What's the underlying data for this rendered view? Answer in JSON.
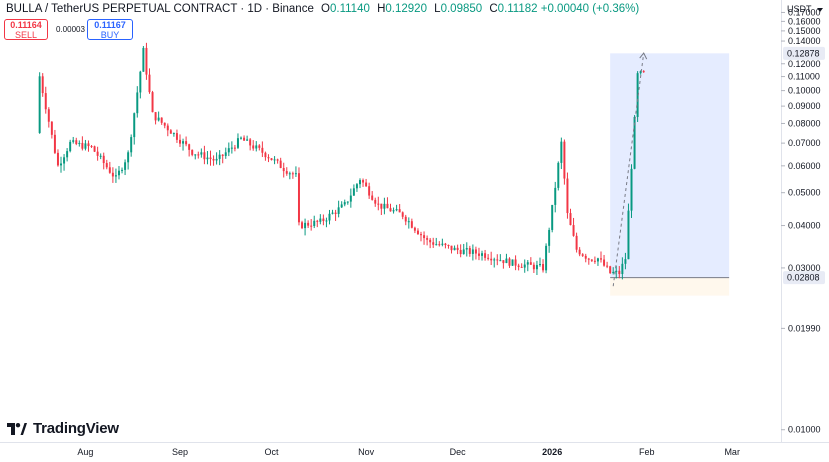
{
  "header": {
    "symbol": "BULLA / TetherUS PERPETUAL CONTRACT · 1D · Binance",
    "o_label": "O",
    "o_value": "0.11140",
    "h_label": "H",
    "h_value": "0.12920",
    "l_label": "L",
    "l_value": "0.09850",
    "c_label": "C",
    "c_value": "0.11182",
    "change": "+0.00040 (+0.36%)"
  },
  "trade": {
    "sell_price": "0.11164",
    "sell_label": "SELL",
    "spread": "0.00003",
    "buy_price": "0.11167",
    "buy_label": "BUY"
  },
  "currency": "USDT",
  "logo": "TradingView",
  "colors": {
    "up": "#089981",
    "down": "#f23645",
    "range": "#2962ff",
    "text": "#131722"
  },
  "chart_data": {
    "type": "candlestick",
    "y_scale": "log",
    "ylim": [
      0.0092,
      0.185
    ],
    "y_ticks": [
      "0.17000",
      "0.16000",
      "0.15000",
      "0.14000",
      "0.12000",
      "0.11000",
      "0.10000",
      "0.09000",
      "0.08000",
      "0.07000",
      "0.06000",
      "0.05000",
      "0.04000",
      "0.03000",
      "0.01990",
      "0.01000"
    ],
    "price_labels": {
      "top": "0.12878",
      "bottom": "0.02808"
    },
    "x_ticks": [
      {
        "label": "Aug",
        "date": "2025-08-01"
      },
      {
        "label": "Sep",
        "date": "2025-09-01"
      },
      {
        "label": "Oct",
        "date": "2025-10-01"
      },
      {
        "label": "Nov",
        "date": "2025-11-01"
      },
      {
        "label": "Dec",
        "date": "2025-12-01"
      },
      {
        "label": "2026",
        "date": "2026-01-01"
      },
      {
        "label": "Feb",
        "date": "2026-02-01"
      },
      {
        "label": "Mar",
        "date": "2026-03-01"
      }
    ],
    "xlim": [
      "2025-07-04",
      "2026-03-17"
    ],
    "range_box": {
      "start": "2026-01-20",
      "end": "2026-02-28",
      "low": 0.02808,
      "high": 0.12878
    },
    "trend_line": {
      "from": [
        "2026-01-21",
        0.0265
      ],
      "to": [
        "2026-01-31",
        0.129
      ]
    },
    "key_points": [
      {
        "date": "2025-07-17",
        "price": 0.075
      },
      {
        "date": "2025-07-17",
        "price": 0.122
      },
      {
        "date": "2025-07-24",
        "price": 0.06
      },
      {
        "date": "2025-07-28",
        "price": 0.07
      },
      {
        "date": "2025-08-04",
        "price": 0.068
      },
      {
        "date": "2025-08-12",
        "price": 0.055
      },
      {
        "date": "2025-08-16",
        "price": 0.065
      },
      {
        "date": "2025-08-21",
        "price": 0.131
      },
      {
        "date": "2025-08-24",
        "price": 0.085
      },
      {
        "date": "2025-08-30",
        "price": 0.076
      },
      {
        "date": "2025-09-06",
        "price": 0.066
      },
      {
        "date": "2025-09-14",
        "price": 0.062
      },
      {
        "date": "2025-09-22",
        "price": 0.072
      },
      {
        "date": "2025-09-30",
        "price": 0.065
      },
      {
        "date": "2025-10-06",
        "price": 0.059
      },
      {
        "date": "2025-10-10",
        "price": 0.056
      },
      {
        "date": "2025-10-11",
        "price": 0.04
      },
      {
        "date": "2025-10-18",
        "price": 0.041
      },
      {
        "date": "2025-10-26",
        "price": 0.046
      },
      {
        "date": "2025-10-31",
        "price": 0.055
      },
      {
        "date": "2025-11-06",
        "price": 0.046
      },
      {
        "date": "2025-11-14",
        "price": 0.043
      },
      {
        "date": "2025-11-22",
        "price": 0.036
      },
      {
        "date": "2025-12-01",
        "price": 0.034
      },
      {
        "date": "2025-12-10",
        "price": 0.033
      },
      {
        "date": "2025-12-20",
        "price": 0.031
      },
      {
        "date": "2025-12-30",
        "price": 0.03
      },
      {
        "date": "2026-01-02",
        "price": 0.045
      },
      {
        "date": "2026-01-05",
        "price": 0.07
      },
      {
        "date": "2026-01-07",
        "price": 0.043
      },
      {
        "date": "2026-01-10",
        "price": 0.034
      },
      {
        "date": "2026-01-14",
        "price": 0.032
      },
      {
        "date": "2026-01-17",
        "price": 0.032
      },
      {
        "date": "2026-01-21",
        "price": 0.029
      },
      {
        "date": "2026-01-24",
        "price": 0.029
      },
      {
        "date": "2026-01-26",
        "price": 0.032
      },
      {
        "date": "2026-01-28",
        "price": 0.06
      },
      {
        "date": "2026-01-30",
        "price": 0.111
      },
      {
        "date": "2026-01-31",
        "price": 0.1118
      }
    ]
  }
}
